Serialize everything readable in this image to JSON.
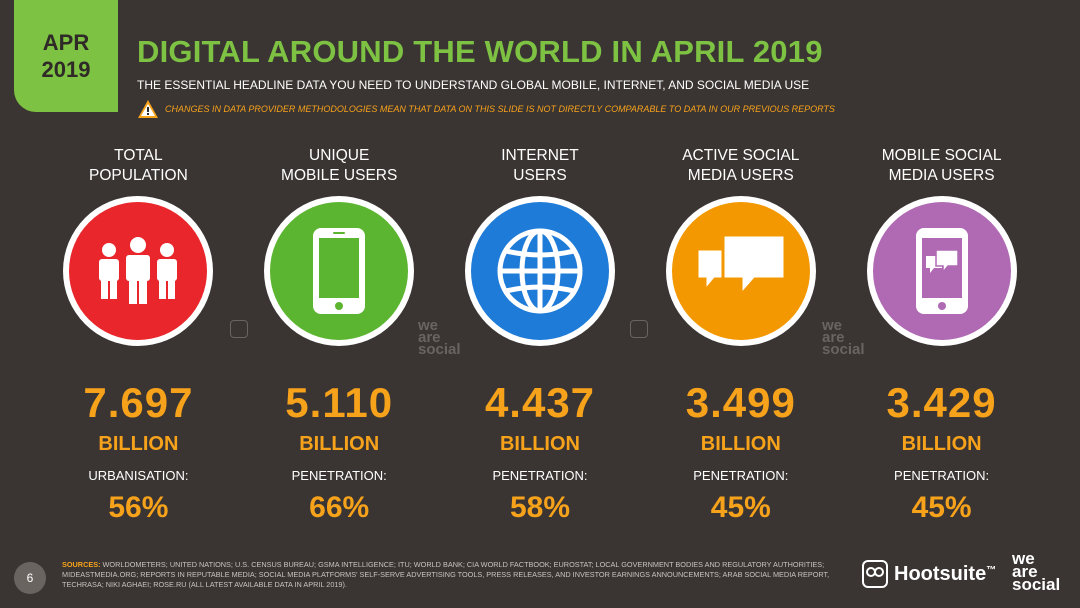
{
  "badge": {
    "month": "APR",
    "year": "2019"
  },
  "header": {
    "title": "DIGITAL AROUND THE WORLD IN APRIL 2019",
    "subtitle": "THE ESSENTIAL HEADLINE DATA YOU NEED TO UNDERSTAND GLOBAL MOBILE, INTERNET, AND SOCIAL MEDIA USE",
    "warning": "CHANGES IN DATA PROVIDER METHODOLOGIES MEAN THAT DATA ON THIS SLIDE IS NOT DIRECTLY COMPARABLE TO DATA IN OUR PREVIOUS REPORTS"
  },
  "colors": {
    "green": "#7dc242",
    "orange": "#f7a21b",
    "red": "#e8262b",
    "mobile_green": "#5cb531",
    "blue": "#1e7bd8",
    "social_orange": "#f39800",
    "purple": "#b06ab3",
    "background": "#3a3532"
  },
  "metrics": [
    {
      "label": "TOTAL\nPOPULATION",
      "icon": "people-icon",
      "value": "7.697",
      "unit": "BILLION",
      "sub_label": "URBANISATION:",
      "sub_value": "56%"
    },
    {
      "label": "UNIQUE\nMOBILE USERS",
      "icon": "mobile-phone-icon",
      "value": "5.110",
      "unit": "BILLION",
      "sub_label": "PENETRATION:",
      "sub_value": "66%"
    },
    {
      "label": "INTERNET\nUSERS",
      "icon": "globe-icon",
      "value": "4.437",
      "unit": "BILLION",
      "sub_label": "PENETRATION:",
      "sub_value": "58%"
    },
    {
      "label": "ACTIVE SOCIAL\nMEDIA USERS",
      "icon": "chat-bubbles-icon",
      "value": "3.499",
      "unit": "BILLION",
      "sub_label": "PENETRATION:",
      "sub_value": "45%"
    },
    {
      "label": "MOBILE SOCIAL\nMEDIA USERS",
      "icon": "mobile-chat-icon",
      "value": "3.429",
      "unit": "BILLION",
      "sub_label": "PENETRATION:",
      "sub_value": "45%"
    }
  ],
  "footer": {
    "page_number": "6",
    "sources_label": "SOURCES:",
    "sources_text": "WORLDOMETERS; UNITED NATIONS; U.S. CENSUS BUREAU; GSMA INTELLIGENCE; ITU; WORLD BANK; CIA WORLD FACTBOOK; EUROSTAT; LOCAL GOVERNMENT BODIES AND REGULATORY AUTHORITIES; MIDEASTMEDIA.ORG; REPORTS IN REPUTABLE MEDIA; SOCIAL MEDIA PLATFORMS' SELF-SERVE ADVERTISING TOOLS, PRESS RELEASES, AND INVESTOR EARNINGS ANNOUNCEMENTS; ARAB SOCIAL MEDIA REPORT, TECHRASA; NIKI AGHAEI; ROSE.RU (ALL LATEST AVAILABLE DATA IN APRIL 2019).",
    "hootsuite": "Hootsuite",
    "trademark": "™",
    "was_line1": "we",
    "was_line2": "are",
    "was_line3": "social"
  }
}
